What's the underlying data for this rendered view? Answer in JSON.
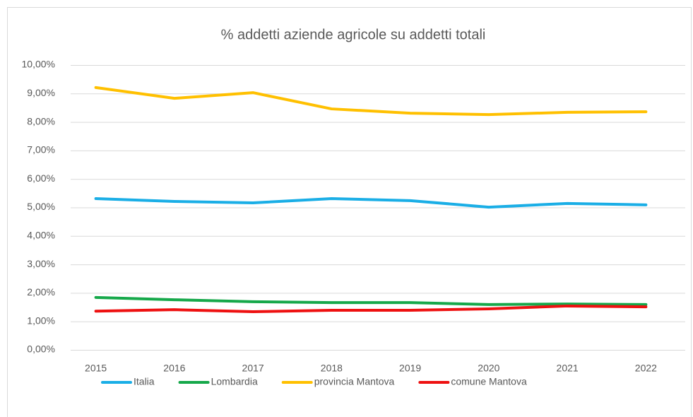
{
  "chart_data": {
    "type": "line",
    "title": "% addetti aziende  agricole su addetti totali",
    "categories": [
      "2015",
      "2016",
      "2017",
      "2018",
      "2019",
      "2020",
      "2021",
      "2022"
    ],
    "series": [
      {
        "name": "Italia",
        "color": "#1aaee6",
        "values": [
          5.31,
          5.21,
          5.16,
          5.31,
          5.24,
          5.01,
          5.14,
          5.09
        ]
      },
      {
        "name": "Lombardia",
        "color": "#16a84a",
        "values": [
          1.84,
          1.76,
          1.69,
          1.66,
          1.66,
          1.59,
          1.61,
          1.59
        ]
      },
      {
        "name": "provincia Mantova",
        "color": "#ffc000",
        "values": [
          9.21,
          8.83,
          9.03,
          8.46,
          8.31,
          8.26,
          8.34,
          8.36
        ]
      },
      {
        "name": "comune Mantova",
        "color": "#ee1111",
        "values": [
          1.36,
          1.41,
          1.34,
          1.39,
          1.39,
          1.44,
          1.54,
          1.51
        ]
      }
    ],
    "ylim": [
      0,
      10
    ],
    "yticks": [
      {
        "value": 0,
        "label": "0,00%"
      },
      {
        "value": 1,
        "label": "1,00%"
      },
      {
        "value": 2,
        "label": "2,00%"
      },
      {
        "value": 3,
        "label": "3,00%"
      },
      {
        "value": 4,
        "label": "4,00%"
      },
      {
        "value": 5,
        "label": "5,00%"
      },
      {
        "value": 6,
        "label": "6,00%"
      },
      {
        "value": 7,
        "label": "7,00%"
      },
      {
        "value": 8,
        "label": "8,00%"
      },
      {
        "value": 9,
        "label": "9,00%"
      },
      {
        "value": 10,
        "label": "10,00%"
      }
    ],
    "grid": true,
    "legend": "bottom"
  }
}
